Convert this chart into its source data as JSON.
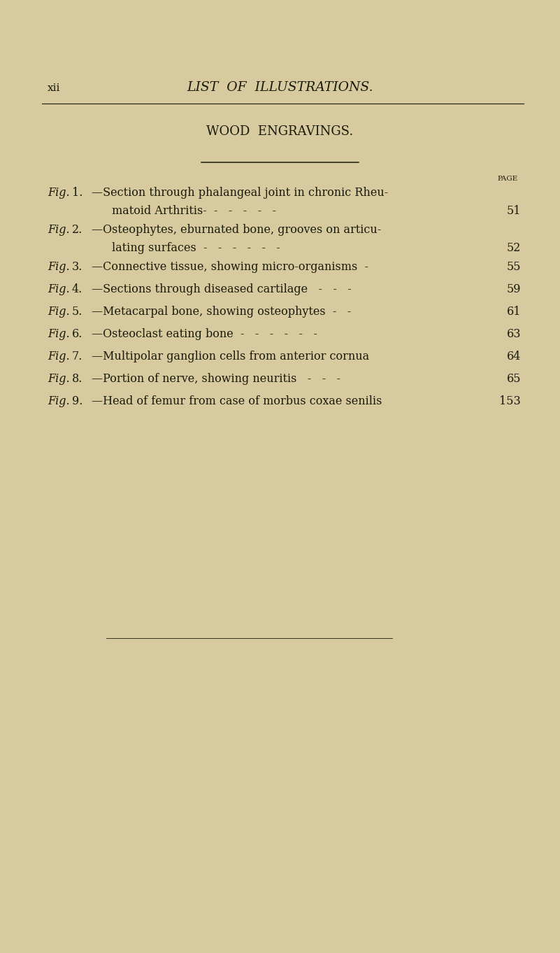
{
  "bg_color": "#d6ca9e",
  "text_color": "#1a1a0a",
  "page_num": "xii",
  "header_title": "LIST  OF  ILLUSTRATIONS.",
  "section_title": "WOOD  ENGRAVINGS.",
  "page_label": "PAGE",
  "entries": [
    {
      "fig_italic": "Fig.",
      "fig_num": "1.",
      "line1": "—Section through phalangeal joint in chronic Rheu-",
      "line2": "matoid Arthritis-  -   -   -   -   -",
      "page": "51",
      "two_line": true
    },
    {
      "fig_italic": "Fig.",
      "fig_num": "2.",
      "line1": "—Osteophytes, eburnated bone, grooves on articu-",
      "line2": "lating surfaces  -   -   -   -   -   -",
      "page": "52",
      "two_line": true
    },
    {
      "fig_italic": "Fig.",
      "fig_num": "3.",
      "line1": "—Connective tissue, showing micro-organisms  -",
      "line2": "",
      "page": "55",
      "two_line": false
    },
    {
      "fig_italic": "Fig.",
      "fig_num": "4.",
      "line1": "—Sections through diseased cartilage   -   -   -",
      "line2": "",
      "page": "59",
      "two_line": false
    },
    {
      "fig_italic": "Fig.",
      "fig_num": "5.",
      "line1": "—Metacarpal bone, showing osteophytes  -   -",
      "line2": "",
      "page": "61",
      "two_line": false
    },
    {
      "fig_italic": "Fig.",
      "fig_num": "6.",
      "line1": "—Osteoclast eating bone  -   -   -   -   -   -",
      "line2": "",
      "page": "63",
      "two_line": false
    },
    {
      "fig_italic": "Fig.",
      "fig_num": "7.",
      "line1": "—Multipolar ganglion cells from anterior cornua",
      "line2": "",
      "page": "64",
      "two_line": false
    },
    {
      "fig_italic": "Fig.",
      "fig_num": "8.",
      "line1": "—Portion of nerve, showing neuritis   -   -   -",
      "line2": "",
      "page": "65",
      "two_line": false
    },
    {
      "fig_italic": "Fig.",
      "fig_num": "9.",
      "line1": "—Head of femur from case of morbus coxae senilis",
      "line2": "",
      "page": "153",
      "two_line": false
    }
  ],
  "figsize": [
    8.01,
    13.62
  ],
  "dpi": 100
}
